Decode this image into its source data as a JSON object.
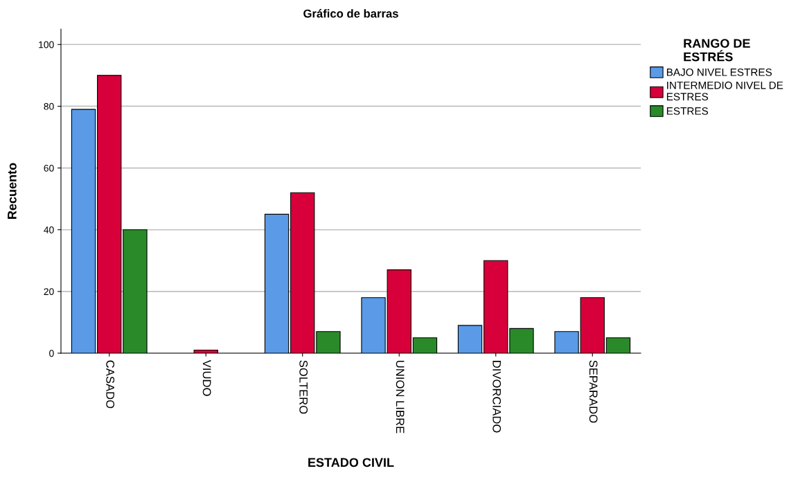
{
  "chart_data": {
    "type": "bar",
    "title": "Gráfico de barras",
    "xlabel": "ESTADO CIVIL",
    "ylabel": "Recuento",
    "legend_title": "RANGO DE\nESTRÉS",
    "categories": [
      "CASADO",
      "VIUDO",
      "SOLTERO",
      "UNION LIBRE",
      "DIVORCIADO",
      "SEPARADO"
    ],
    "series": [
      {
        "name": "BAJO NIVEL ESTRES",
        "color": "#5a9ae6",
        "values": [
          79,
          null,
          45,
          18,
          9,
          7
        ]
      },
      {
        "name": "INTERMEDIO NIVEL DE\nESTRES",
        "color": "#d8003a",
        "values": [
          90,
          1,
          52,
          27,
          30,
          18
        ]
      },
      {
        "name": "ESTRES",
        "color": "#2a8a2a",
        "values": [
          40,
          null,
          7,
          5,
          8,
          5
        ]
      }
    ],
    "ylim": [
      0,
      105
    ],
    "yticks": [
      0,
      20,
      40,
      60,
      80,
      100
    ],
    "grid": "y",
    "legend": "top right"
  }
}
